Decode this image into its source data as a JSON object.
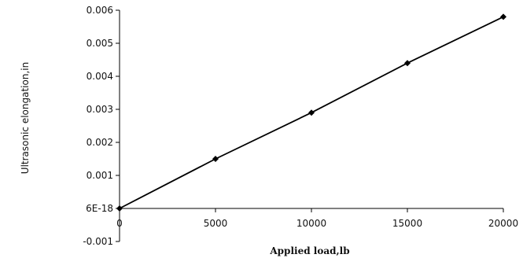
{
  "chart_data": {
    "type": "line",
    "title": "",
    "xlabel": "Applied load,lb",
    "ylabel": "Ultrasonic elongation,in",
    "xlim": [
      0,
      20000
    ],
    "ylim": [
      -0.001,
      0.006
    ],
    "x_ticks": [
      {
        "value": 0,
        "label": "0"
      },
      {
        "value": 5000,
        "label": "5000"
      },
      {
        "value": 10000,
        "label": "10000"
      },
      {
        "value": 15000,
        "label": "15000"
      },
      {
        "value": 20000,
        "label": "20000"
      }
    ],
    "y_ticks": [
      {
        "value": -0.001,
        "label": "-0.001"
      },
      {
        "value": 0,
        "label": "6E-18"
      },
      {
        "value": 0.001,
        "label": "0.001"
      },
      {
        "value": 0.002,
        "label": "0.002"
      },
      {
        "value": 0.003,
        "label": "0.003"
      },
      {
        "value": 0.004,
        "label": "0.004"
      },
      {
        "value": 0.005,
        "label": "0.005"
      },
      {
        "value": 0.006,
        "label": "0.006"
      }
    ],
    "grid": false,
    "legend": "none",
    "series": [
      {
        "x": [
          0,
          5000,
          10000,
          15000,
          20000
        ],
        "values": [
          0,
          0.0015,
          0.0029,
          0.0044,
          0.0058
        ],
        "color": "#000000",
        "marker": "diamond"
      }
    ]
  }
}
